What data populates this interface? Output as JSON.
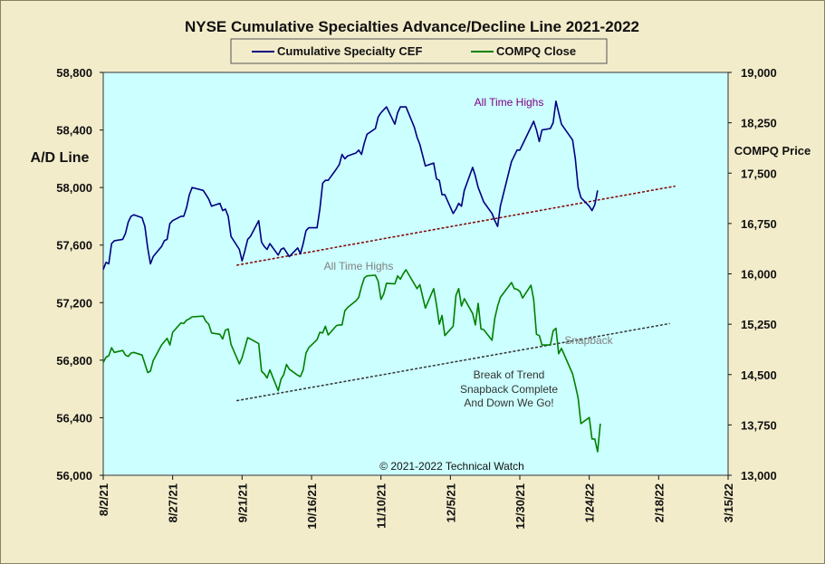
{
  "chart_data": {
    "type": "line",
    "title": "NYSE Cumulative  Specialties  Advance/Decline  Line  2021-2022",
    "ylabel_left": "A/D Line",
    "ylabel_right": "COMPQ Price",
    "xlabel": "",
    "grid": false,
    "legend_placement": "top-center",
    "background_color": "#ccffff",
    "frame_color": "#f3eccb",
    "y_left": {
      "min": 56000,
      "max": 58800,
      "ticks": [
        "56,000",
        "56,400",
        "56,800",
        "57,200",
        "57,600",
        "58,000",
        "58,400",
        "58,800"
      ]
    },
    "y_right": {
      "min": 13000,
      "max": 19000,
      "ticks": [
        "13,000",
        "13,750",
        "14,500",
        "15,250",
        "16,000",
        "16,750",
        "17,500",
        "18,250",
        "19,000"
      ]
    },
    "x_axis": {
      "start": "8/2/21",
      "end": "3/15/22",
      "ticks": [
        "8/2/21",
        "8/27/21",
        "9/21/21",
        "10/16/21",
        "11/10/21",
        "12/5/21",
        "12/30/21",
        "1/24/22",
        "2/18/22",
        "3/15/22"
      ]
    },
    "series": [
      {
        "name": "Cumulative Specialty CEF",
        "color": "#000080",
        "axis": "left",
        "points": [
          [
            "2021-08-02",
            57430
          ],
          [
            "2021-08-03",
            57480
          ],
          [
            "2021-08-04",
            57470
          ],
          [
            "2021-08-05",
            57610
          ],
          [
            "2021-08-06",
            57630
          ],
          [
            "2021-08-09",
            57640
          ],
          [
            "2021-08-10",
            57680
          ],
          [
            "2021-08-11",
            57760
          ],
          [
            "2021-08-12",
            57800
          ],
          [
            "2021-08-13",
            57810
          ],
          [
            "2021-08-16",
            57790
          ],
          [
            "2021-08-17",
            57730
          ],
          [
            "2021-08-18",
            57580
          ],
          [
            "2021-08-19",
            57470
          ],
          [
            "2021-08-20",
            57520
          ],
          [
            "2021-08-23",
            57590
          ],
          [
            "2021-08-24",
            57630
          ],
          [
            "2021-08-25",
            57640
          ],
          [
            "2021-08-26",
            57750
          ],
          [
            "2021-08-27",
            57770
          ],
          [
            "2021-08-30",
            57800
          ],
          [
            "2021-08-31",
            57800
          ],
          [
            "2021-09-01",
            57860
          ],
          [
            "2021-09-02",
            57950
          ],
          [
            "2021-09-03",
            58000
          ],
          [
            "2021-09-07",
            57980
          ],
          [
            "2021-09-08",
            57950
          ],
          [
            "2021-09-09",
            57920
          ],
          [
            "2021-09-10",
            57870
          ],
          [
            "2021-09-13",
            57890
          ],
          [
            "2021-09-14",
            57840
          ],
          [
            "2021-09-15",
            57850
          ],
          [
            "2021-09-16",
            57800
          ],
          [
            "2021-09-17",
            57660
          ],
          [
            "2021-09-20",
            57570
          ],
          [
            "2021-09-21",
            57490
          ],
          [
            "2021-09-22",
            57560
          ],
          [
            "2021-09-23",
            57640
          ],
          [
            "2021-09-24",
            57660
          ],
          [
            "2021-09-27",
            57770
          ],
          [
            "2021-09-28",
            57620
          ],
          [
            "2021-09-29",
            57590
          ],
          [
            "2021-09-30",
            57570
          ],
          [
            "2021-10-01",
            57610
          ],
          [
            "2021-10-04",
            57530
          ],
          [
            "2021-10-05",
            57570
          ],
          [
            "2021-10-06",
            57580
          ],
          [
            "2021-10-07",
            57550
          ],
          [
            "2021-10-08",
            57520
          ],
          [
            "2021-10-11",
            57580
          ],
          [
            "2021-10-12",
            57540
          ],
          [
            "2021-10-13",
            57610
          ],
          [
            "2021-10-14",
            57700
          ],
          [
            "2021-10-15",
            57720
          ],
          [
            "2021-10-18",
            57720
          ],
          [
            "2021-10-19",
            57850
          ],
          [
            "2021-10-20",
            58030
          ],
          [
            "2021-10-21",
            58050
          ],
          [
            "2021-10-22",
            58050
          ],
          [
            "2021-10-25",
            58130
          ],
          [
            "2021-10-26",
            58160
          ],
          [
            "2021-10-27",
            58230
          ],
          [
            "2021-10-28",
            58200
          ],
          [
            "2021-10-29",
            58220
          ],
          [
            "2021-11-01",
            58240
          ],
          [
            "2021-11-02",
            58260
          ],
          [
            "2021-11-03",
            58230
          ],
          [
            "2021-11-04",
            58310
          ],
          [
            "2021-11-05",
            58370
          ],
          [
            "2021-11-08",
            58410
          ],
          [
            "2021-11-09",
            58490
          ],
          [
            "2021-11-10",
            58520
          ],
          [
            "2021-11-11",
            58540
          ],
          [
            "2021-11-12",
            58560
          ],
          [
            "2021-11-15",
            58440
          ],
          [
            "2021-11-16",
            58520
          ],
          [
            "2021-11-17",
            58560
          ],
          [
            "2021-11-18",
            58560
          ],
          [
            "2021-11-19",
            58560
          ],
          [
            "2021-11-22",
            58420
          ],
          [
            "2021-11-23",
            58350
          ],
          [
            "2021-11-24",
            58300
          ],
          [
            "2021-11-26",
            58150
          ],
          [
            "2021-11-29",
            58170
          ],
          [
            "2021-11-30",
            58060
          ],
          [
            "2021-12-01",
            58050
          ],
          [
            "2021-12-02",
            57950
          ],
          [
            "2021-12-03",
            57950
          ],
          [
            "2021-12-06",
            57820
          ],
          [
            "2021-12-07",
            57850
          ],
          [
            "2021-12-08",
            57890
          ],
          [
            "2021-12-09",
            57870
          ],
          [
            "2021-12-10",
            57980
          ],
          [
            "2021-12-13",
            58140
          ],
          [
            "2021-12-14",
            58080
          ],
          [
            "2021-12-15",
            58000
          ],
          [
            "2021-12-16",
            57950
          ],
          [
            "2021-12-17",
            57900
          ],
          [
            "2021-12-20",
            57820
          ],
          [
            "2021-12-21",
            57770
          ],
          [
            "2021-12-22",
            57730
          ],
          [
            "2021-12-23",
            57870
          ],
          [
            "2021-12-27",
            58180
          ],
          [
            "2021-12-28",
            58220
          ],
          [
            "2021-12-29",
            58260
          ],
          [
            "2021-12-30",
            58260
          ],
          [
            "2021-12-31",
            58300
          ],
          [
            "2022-01-03",
            58420
          ],
          [
            "2022-01-04",
            58460
          ],
          [
            "2022-01-05",
            58400
          ],
          [
            "2022-01-06",
            58320
          ],
          [
            "2022-01-07",
            58400
          ],
          [
            "2022-01-10",
            58410
          ],
          [
            "2022-01-11",
            58450
          ],
          [
            "2022-01-12",
            58600
          ],
          [
            "2022-01-13",
            58520
          ],
          [
            "2022-01-14",
            58440
          ],
          [
            "2022-01-18",
            58330
          ],
          [
            "2022-01-19",
            58200
          ],
          [
            "2022-01-20",
            58000
          ],
          [
            "2022-01-21",
            57930
          ],
          [
            "2022-01-24",
            57870
          ],
          [
            "2022-01-25",
            57840
          ],
          [
            "2022-01-26",
            57880
          ],
          [
            "2022-01-27",
            57980
          ]
        ]
      },
      {
        "name": "COMPQ Close",
        "color": "#008000",
        "axis": "right",
        "points": [
          [
            "2021-08-02",
            14680
          ],
          [
            "2021-08-03",
            14760
          ],
          [
            "2021-08-04",
            14780
          ],
          [
            "2021-08-05",
            14900
          ],
          [
            "2021-08-06",
            14830
          ],
          [
            "2021-08-09",
            14860
          ],
          [
            "2021-08-10",
            14790
          ],
          [
            "2021-08-11",
            14770
          ],
          [
            "2021-08-12",
            14820
          ],
          [
            "2021-08-13",
            14830
          ],
          [
            "2021-08-16",
            14790
          ],
          [
            "2021-08-17",
            14660
          ],
          [
            "2021-08-18",
            14530
          ],
          [
            "2021-08-19",
            14550
          ],
          [
            "2021-08-20",
            14710
          ],
          [
            "2021-08-23",
            14940
          ],
          [
            "2021-08-24",
            14990
          ],
          [
            "2021-08-25",
            15040
          ],
          [
            "2021-08-26",
            14940
          ],
          [
            "2021-08-27",
            15130
          ],
          [
            "2021-08-30",
            15270
          ],
          [
            "2021-08-31",
            15260
          ],
          [
            "2021-09-01",
            15310
          ],
          [
            "2021-09-02",
            15330
          ],
          [
            "2021-09-03",
            15360
          ],
          [
            "2021-09-07",
            15370
          ],
          [
            "2021-09-08",
            15290
          ],
          [
            "2021-09-09",
            15250
          ],
          [
            "2021-09-10",
            15120
          ],
          [
            "2021-09-13",
            15100
          ],
          [
            "2021-09-14",
            15030
          ],
          [
            "2021-09-15",
            15160
          ],
          [
            "2021-09-16",
            15180
          ],
          [
            "2021-09-17",
            14950
          ],
          [
            "2021-09-20",
            14660
          ],
          [
            "2021-09-21",
            14750
          ],
          [
            "2021-09-22",
            14900
          ],
          [
            "2021-09-23",
            15050
          ],
          [
            "2021-09-24",
            15030
          ],
          [
            "2021-09-27",
            14960
          ],
          [
            "2021-09-28",
            14550
          ],
          [
            "2021-09-29",
            14510
          ],
          [
            "2021-09-30",
            14450
          ],
          [
            "2021-10-01",
            14570
          ],
          [
            "2021-10-04",
            14260
          ],
          [
            "2021-10-05",
            14430
          ],
          [
            "2021-10-06",
            14500
          ],
          [
            "2021-10-07",
            14650
          ],
          [
            "2021-10-08",
            14580
          ],
          [
            "2021-10-11",
            14490
          ],
          [
            "2021-10-12",
            14470
          ],
          [
            "2021-10-13",
            14570
          ],
          [
            "2021-10-14",
            14820
          ],
          [
            "2021-10-15",
            14900
          ],
          [
            "2021-10-18",
            15020
          ],
          [
            "2021-10-19",
            15130
          ],
          [
            "2021-10-20",
            15120
          ],
          [
            "2021-10-21",
            15220
          ],
          [
            "2021-10-22",
            15090
          ],
          [
            "2021-10-25",
            15230
          ],
          [
            "2021-10-26",
            15240
          ],
          [
            "2021-10-27",
            15240
          ],
          [
            "2021-10-28",
            15450
          ],
          [
            "2021-10-29",
            15500
          ],
          [
            "2021-11-01",
            15600
          ],
          [
            "2021-11-02",
            15650
          ],
          [
            "2021-11-03",
            15810
          ],
          [
            "2021-11-04",
            15940
          ],
          [
            "2021-11-05",
            15970
          ],
          [
            "2021-11-08",
            15980
          ],
          [
            "2021-11-09",
            15890
          ],
          [
            "2021-11-10",
            15620
          ],
          [
            "2021-11-11",
            15700
          ],
          [
            "2021-11-12",
            15860
          ],
          [
            "2021-11-15",
            15850
          ],
          [
            "2021-11-16",
            15970
          ],
          [
            "2021-11-17",
            15920
          ],
          [
            "2021-11-18",
            16000
          ],
          [
            "2021-11-19",
            16060
          ],
          [
            "2021-11-22",
            15850
          ],
          [
            "2021-11-23",
            15780
          ],
          [
            "2021-11-24",
            15840
          ],
          [
            "2021-11-26",
            15490
          ],
          [
            "2021-11-29",
            15780
          ],
          [
            "2021-11-30",
            15540
          ],
          [
            "2021-12-01",
            15250
          ],
          [
            "2021-12-02",
            15380
          ],
          [
            "2021-12-03",
            15080
          ],
          [
            "2021-12-06",
            15220
          ],
          [
            "2021-12-07",
            15680
          ],
          [
            "2021-12-08",
            15780
          ],
          [
            "2021-12-09",
            15520
          ],
          [
            "2021-12-10",
            15630
          ],
          [
            "2021-12-13",
            15410
          ],
          [
            "2021-12-14",
            15240
          ],
          [
            "2021-12-15",
            15560
          ],
          [
            "2021-12-16",
            15180
          ],
          [
            "2021-12-17",
            15170
          ],
          [
            "2021-12-20",
            15010
          ],
          [
            "2021-12-21",
            15340
          ],
          [
            "2021-12-22",
            15520
          ],
          [
            "2021-12-23",
            15650
          ],
          [
            "2021-12-27",
            15870
          ],
          [
            "2021-12-28",
            15780
          ],
          [
            "2021-12-29",
            15770
          ],
          [
            "2021-12-30",
            15740
          ],
          [
            "2021-12-31",
            15640
          ],
          [
            "2022-01-03",
            15830
          ],
          [
            "2022-01-04",
            15620
          ],
          [
            "2022-01-05",
            15100
          ],
          [
            "2022-01-06",
            15080
          ],
          [
            "2022-01-07",
            14940
          ],
          [
            "2022-01-10",
            14940
          ],
          [
            "2022-01-11",
            15150
          ],
          [
            "2022-01-12",
            15190
          ],
          [
            "2022-01-13",
            14810
          ],
          [
            "2022-01-14",
            14890
          ],
          [
            "2022-01-18",
            14510
          ],
          [
            "2022-01-19",
            14340
          ],
          [
            "2022-01-20",
            14150
          ],
          [
            "2022-01-21",
            13770
          ],
          [
            "2022-01-24",
            13860
          ],
          [
            "2022-01-25",
            13540
          ],
          [
            "2022-01-26",
            13540
          ],
          [
            "2022-01-27",
            13350
          ],
          [
            "2022-01-28",
            13770
          ]
        ]
      }
    ],
    "trendlines": [
      {
        "axis": "left",
        "color": "#800000",
        "from": [
          "2021-09-19",
          57460
        ],
        "to": [
          "2022-02-24",
          58010
        ]
      },
      {
        "axis": "right",
        "color": "#333333",
        "from": [
          "2021-09-19",
          14110
        ],
        "to": [
          "2022-02-22",
          15260
        ]
      }
    ],
    "annotations": [
      {
        "text": "All Time Highs",
        "color": "#800080"
      },
      {
        "text": "All Time Highs",
        "color": "#808080"
      },
      {
        "text": "Snapback",
        "color": "#808080"
      },
      {
        "text": "Break of Trend",
        "color": "#333333"
      },
      {
        "text": "Snapback Complete",
        "color": "#333333"
      },
      {
        "text": "And Down We Go!",
        "color": "#333333"
      },
      {
        "text": "© 2021-2022  Technical Watch",
        "color": "#111111"
      }
    ]
  }
}
